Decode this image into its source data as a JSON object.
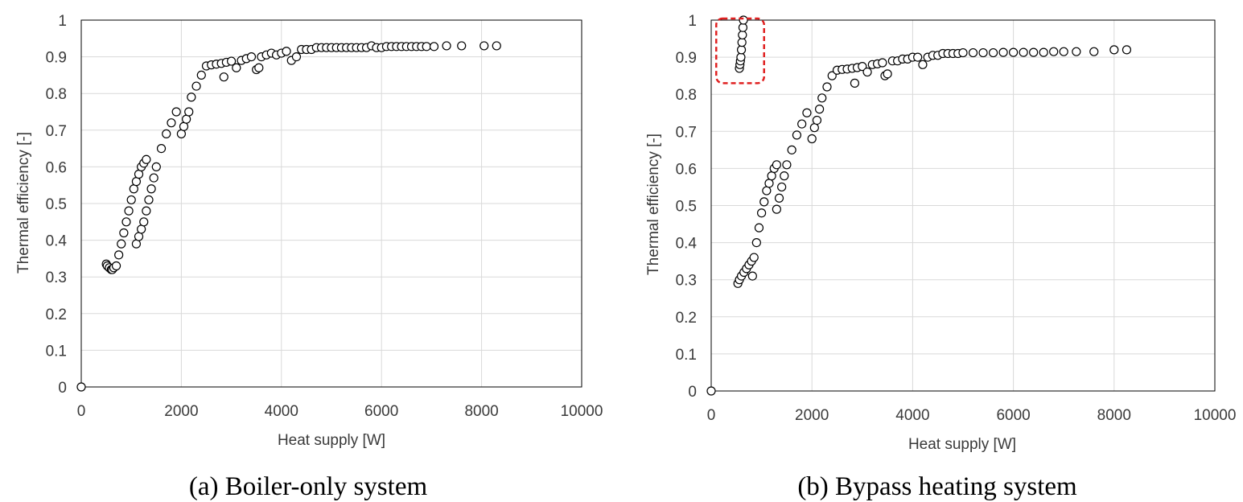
{
  "chart_data": [
    {
      "type": "scatter",
      "caption": "(a) Boiler-only system",
      "xlabel": "Heat supply [W]",
      "ylabel": "Thermal efficiency [-]",
      "xlim": [
        0,
        10000
      ],
      "ylim": [
        0,
        1
      ],
      "xticks": [
        "0",
        "2000",
        "4000",
        "6000",
        "8000",
        "10000"
      ],
      "yticks": [
        "0",
        "0.1",
        "0.2",
        "0.3",
        "0.4",
        "0.5",
        "0.6",
        "0.7",
        "0.8",
        "0.9",
        "1"
      ],
      "grid": true,
      "series": [
        {
          "x": [
            0,
            500,
            520,
            560,
            600,
            620,
            650,
            700,
            750,
            800,
            850,
            900,
            950,
            1000,
            1050,
            1100,
            1150,
            1200,
            1250,
            1300,
            1100,
            1150,
            1200,
            1250,
            1300,
            1350,
            1400,
            1450,
            1500,
            1600,
            1700,
            1800,
            1900,
            2000,
            2050,
            2100,
            2150,
            2200,
            2300,
            2400,
            2500,
            2600,
            2700,
            2800,
            2850,
            2900,
            3000,
            3100,
            3200,
            3300,
            3400,
            3500,
            3550,
            3600,
            3700,
            3800,
            3900,
            4000,
            4100,
            4200,
            4300,
            4400,
            4500,
            4600,
            4700,
            4800,
            4900,
            5000,
            5100,
            5200,
            5300,
            5400,
            5500,
            5600,
            5700,
            5800,
            5900,
            6000,
            6100,
            6200,
            6300,
            6400,
            6500,
            6600,
            6700,
            6800,
            6900,
            7050,
            7300,
            7600,
            8050,
            8300
          ],
          "y": [
            0,
            0.335,
            0.33,
            0.325,
            0.32,
            0.32,
            0.325,
            0.33,
            0.36,
            0.39,
            0.42,
            0.45,
            0.48,
            0.51,
            0.54,
            0.56,
            0.58,
            0.6,
            0.61,
            0.62,
            0.39,
            0.41,
            0.43,
            0.45,
            0.48,
            0.51,
            0.54,
            0.57,
            0.6,
            0.65,
            0.69,
            0.72,
            0.75,
            0.69,
            0.71,
            0.73,
            0.75,
            0.79,
            0.82,
            0.85,
            0.875,
            0.878,
            0.88,
            0.882,
            0.845,
            0.885,
            0.888,
            0.87,
            0.89,
            0.895,
            0.9,
            0.865,
            0.87,
            0.9,
            0.905,
            0.91,
            0.905,
            0.91,
            0.915,
            0.89,
            0.9,
            0.92,
            0.92,
            0.92,
            0.925,
            0.925,
            0.925,
            0.925,
            0.925,
            0.925,
            0.925,
            0.925,
            0.925,
            0.925,
            0.925,
            0.93,
            0.925,
            0.925,
            0.928,
            0.928,
            0.928,
            0.928,
            0.928,
            0.928,
            0.928,
            0.928,
            0.928,
            0.928,
            0.93,
            0.93,
            0.93,
            0.93
          ]
        }
      ]
    },
    {
      "type": "scatter",
      "caption": "(b) Bypass heating system",
      "xlabel": "Heat supply [W]",
      "ylabel": "Thermal efficiency [-]",
      "xlim": [
        0,
        10000
      ],
      "ylim": [
        0,
        1
      ],
      "xticks": [
        "0",
        "2000",
        "4000",
        "6000",
        "8000",
        "10000"
      ],
      "yticks": [
        "0",
        "0.1",
        "0.2",
        "0.3",
        "0.4",
        "0.5",
        "0.6",
        "0.7",
        "0.8",
        "0.9",
        "1"
      ],
      "grid": true,
      "highlight": {
        "x_range": [
          100,
          1050
        ],
        "y_range": [
          0.83,
          1.0
        ],
        "color": "#e02020",
        "style": "dashed"
      },
      "series": [
        {
          "x": [
            0,
            530,
            560,
            600,
            650,
            700,
            750,
            800,
            820,
            850,
            900,
            950,
            1000,
            1050,
            1100,
            1150,
            1200,
            1250,
            1300,
            1300,
            1350,
            1400,
            1450,
            1500,
            1600,
            1700,
            1800,
            1900,
            2000,
            2050,
            2100,
            2150,
            2200,
            2300,
            2400,
            2500,
            2600,
            2700,
            2800,
            2850,
            2900,
            3000,
            3100,
            3200,
            3300,
            3400,
            3450,
            3500,
            3600,
            3700,
            3800,
            3900,
            4000,
            4100,
            4200,
            4300,
            4400,
            4500,
            4600,
            4700,
            4800,
            4900,
            5000,
            5200,
            5400,
            5600,
            5800,
            6000,
            6200,
            6400,
            6600,
            6800,
            7000,
            7250,
            7600,
            8000,
            8250,
            560,
            570,
            580,
            590,
            600,
            610,
            620,
            630,
            640
          ],
          "y": [
            0,
            0.29,
            0.3,
            0.31,
            0.32,
            0.33,
            0.34,
            0.35,
            0.31,
            0.36,
            0.4,
            0.44,
            0.48,
            0.51,
            0.54,
            0.56,
            0.58,
            0.6,
            0.61,
            0.49,
            0.52,
            0.55,
            0.58,
            0.61,
            0.65,
            0.69,
            0.72,
            0.75,
            0.68,
            0.71,
            0.73,
            0.76,
            0.79,
            0.82,
            0.85,
            0.865,
            0.867,
            0.868,
            0.87,
            0.83,
            0.872,
            0.875,
            0.86,
            0.88,
            0.882,
            0.885,
            0.85,
            0.855,
            0.89,
            0.89,
            0.895,
            0.895,
            0.9,
            0.9,
            0.88,
            0.9,
            0.905,
            0.905,
            0.91,
            0.91,
            0.91,
            0.91,
            0.912,
            0.912,
            0.912,
            0.912,
            0.913,
            0.913,
            0.913,
            0.913,
            0.913,
            0.915,
            0.915,
            0.915,
            0.915,
            0.92,
            0.92,
            0.87,
            0.88,
            0.89,
            0.9,
            0.92,
            0.94,
            0.96,
            0.98,
            1.0
          ]
        }
      ]
    }
  ]
}
